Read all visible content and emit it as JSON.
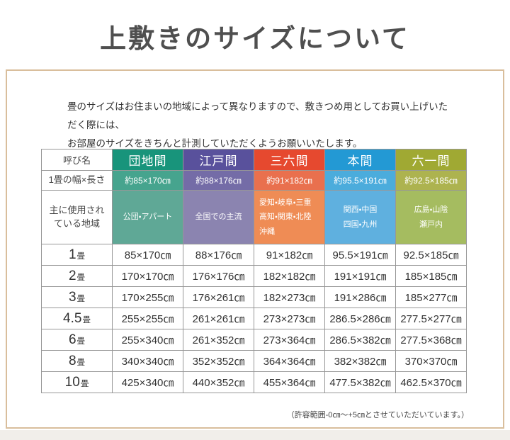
{
  "page": {
    "title": "上敷きのサイズについて",
    "intro_line1": "畳のサイズはお住まいの地域によって異なりますので、敷きつめ用としてお買い上げいただく際には、",
    "intro_line2": "お部屋のサイズをきちんと計測していただくようお願いいたします。",
    "footnote": "（許容範囲-0㎝〜+5㎝とさせていただいています。）",
    "frame_border_color": "#d9be9c"
  },
  "table": {
    "corner_label": "呼び名",
    "row2_label": "1畳の幅×長さ",
    "row3_label": "主に使用されている地域",
    "columns": [
      {
        "label": "団地間",
        "size_label": "約85×170㎝",
        "region_lines": [
          "公団・アパート"
        ],
        "colors": {
          "header": "#18947b",
          "size": "#46a48e",
          "region": "#5fa896"
        }
      },
      {
        "label": "江戸間",
        "size_label": "約88×176㎝",
        "region_lines": [
          "全国での主流"
        ],
        "colors": {
          "header": "#59519c",
          "size": "#746ca7",
          "region": "#8b84b0"
        }
      },
      {
        "label": "三六間",
        "size_label": "約91×182㎝",
        "region_lines": [
          "愛知・岐阜・三重",
          "高知・関東・北陸",
          "沖縄"
        ],
        "colors": {
          "header": "#e6492f",
          "size": "#e9704e",
          "region": "#ef8c55"
        }
      },
      {
        "label": "本間",
        "size_label": "約95.5×191㎝",
        "region_lines": [
          "関西・中国",
          "四国・九州"
        ],
        "colors": {
          "header": "#2399d4",
          "size": "#4bacdc",
          "region": "#5fb0df"
        }
      },
      {
        "label": "六一間",
        "size_label": "約92.5×185㎝",
        "region_lines": [
          "広島・山陰",
          "瀬戸内"
        ],
        "colors": {
          "header": "#a0a933",
          "size": "#adb34f",
          "region": "#a5bc60"
        }
      }
    ],
    "rows": [
      {
        "num": "1",
        "unit": "畳",
        "values": [
          "85×170㎝",
          "88×176㎝",
          "91×182㎝",
          "95.5×191㎝",
          "92.5×185㎝"
        ]
      },
      {
        "num": "2",
        "unit": "畳",
        "values": [
          "170×170㎝",
          "176×176㎝",
          "182×182㎝",
          "191×191㎝",
          "185×185㎝"
        ]
      },
      {
        "num": "3",
        "unit": "畳",
        "values": [
          "170×255㎝",
          "176×261㎝",
          "182×273㎝",
          "191×286㎝",
          "185×277㎝"
        ]
      },
      {
        "num": "4.5",
        "unit": "畳",
        "values": [
          "255×255㎝",
          "261×261㎝",
          "273×273㎝",
          "286.5×286㎝",
          "277.5×277㎝"
        ]
      },
      {
        "num": "6",
        "unit": "畳",
        "values": [
          "255×340㎝",
          "261×352㎝",
          "273×364㎝",
          "286.5×382㎝",
          "277.5×368㎝"
        ]
      },
      {
        "num": "8",
        "unit": "畳",
        "values": [
          "340×340㎝",
          "352×352㎝",
          "364×364㎝",
          "382×382㎝",
          "370×370㎝"
        ]
      },
      {
        "num": "10",
        "unit": "畳",
        "values": [
          "425×340㎝",
          "440×352㎝",
          "455×364㎝",
          "477.5×382㎝",
          "462.5×370㎝"
        ]
      }
    ]
  }
}
